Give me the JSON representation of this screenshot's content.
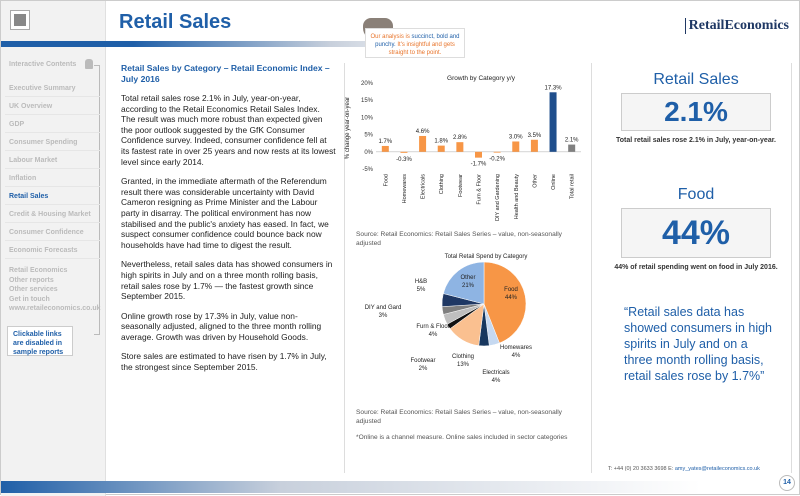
{
  "header": {
    "title": "Retail Sales",
    "brand": "RetailEconomics",
    "callout_a": "Our analysis is ",
    "callout_b": "succinct, bold and punchy.",
    "callout_c": " It's insightful and gets straight to the point."
  },
  "sidebar": {
    "contents_title": "Interactive Contents",
    "items": [
      {
        "label": "Executive Summary"
      },
      {
        "label": "UK Overview"
      },
      {
        "label": "GDP"
      },
      {
        "label": "Consumer Spending"
      },
      {
        "label": "Labour Market"
      },
      {
        "label": "Inflation"
      },
      {
        "label": "Retail Sales",
        "active": true
      },
      {
        "label": "Credit & Housing Market"
      },
      {
        "label": "Consumer Confidence"
      },
      {
        "label": "Economic Forecasts"
      }
    ],
    "links": [
      "Retail Economics",
      "Other reports",
      "Other services",
      "Get in touch",
      "www.retaileconomics.co.uk"
    ],
    "note": "Clickable links are disabled in sample reports"
  },
  "article": {
    "heading": "Retail Sales by Category – Retail Economic Index – July 2016",
    "paragraphs": [
      "Total retail sales rose 2.1% in July, year-on-year, according to the Retail Economics Retail Sales Index. The result was much more robust than expected given the poor outlook suggested by the GfK Consumer Confidence survey. Indeed, consumer confidence fell at its fastest rate in over 25 years and now rests at its lowest level since early 2014.",
      "Granted, in the immediate aftermath of the Referendum result there was considerable uncertainty with David Cameron resigning as Prime Minister and the Labour party in disarray. The political environment has now stabilised and the public's anxiety has eased. In fact, we suspect consumer confidence could bounce back now households have had time to digest the result.",
      "Nevertheless, retail sales data has showed consumers in high spirits in July and on a three month rolling basis, retail sales rose by 1.7% — the fastest growth since September 2015.",
      "Online growth rose by 17.3% in July, value non-seasonally adjusted, aligned to the three month rolling average. Growth was driven by Household Goods.",
      "Store sales are estimated to have risen by 1.7% in July, the strongest since September 2015."
    ]
  },
  "chart_data": [
    {
      "type": "bar",
      "title": "Growth by Category y/y",
      "ylabel": "% change year-on-year",
      "ylim": [
        -5,
        20
      ],
      "yticks": [
        "-5%",
        "0%",
        "5%",
        "10%",
        "15%",
        "20%"
      ],
      "categories": [
        "Food",
        "Homewares",
        "Electricals",
        "Clothing",
        "Footwear",
        "Furn & Floor",
        "DIY and Gardening",
        "Health and Beauty",
        "Other",
        "Online",
        "Total retail"
      ],
      "values": [
        1.7,
        -0.3,
        4.6,
        1.8,
        2.8,
        -1.7,
        -0.2,
        3.0,
        3.5,
        17.3,
        2.1
      ],
      "labels": [
        "1.7%",
        "-0.3%",
        "4.6%",
        "1.8%",
        "2.8%",
        "-1.7%",
        "-0.2%",
        "3.0%",
        "3.5%",
        "17.3%",
        "2.1%"
      ],
      "colors": [
        "#f79646",
        "#f79646",
        "#f79646",
        "#f79646",
        "#f79646",
        "#f79646",
        "#f79646",
        "#f79646",
        "#f79646",
        "#1f4e8c",
        "#808080"
      ]
    },
    {
      "type": "pie",
      "title": "Total Retail Spend by Category",
      "slices": [
        {
          "name": "Food",
          "value": 44,
          "label": "44%",
          "color": "#f79646"
        },
        {
          "name": "Homewares",
          "value": 4,
          "label": "4%",
          "color": "#c6d9f1"
        },
        {
          "name": "Electricals",
          "value": 4,
          "label": "4%",
          "color": "#17375e"
        },
        {
          "name": "Clothing",
          "value": 13,
          "label": "13%",
          "color": "#fac090"
        },
        {
          "name": "Footwear",
          "value": 2,
          "label": "2%",
          "color": "#111111"
        },
        {
          "name": "Furn & Floor",
          "value": 4,
          "label": "4%",
          "color": "#bfbfbf"
        },
        {
          "name": "DIY and Gard",
          "value": 3,
          "label": "3%",
          "color": "#7f7f7f"
        },
        {
          "name": "H&B",
          "value": 5,
          "label": "5%",
          "color": "#1f3864"
        },
        {
          "name": "Other",
          "value": 21,
          "label": "21%",
          "color": "#8eb4e3"
        }
      ]
    }
  ],
  "sources": {
    "bar": "Source: Retail Economics: Retail Sales Series – value, non-seasonally adjusted",
    "pie": "Source: Retail Economics: Retail Sales Series – value, non-seasonally adjusted",
    "note": "*Online is a channel measure. Online sales included in sector categories"
  },
  "kpis": [
    {
      "title": "Retail Sales",
      "value": "2.1%",
      "sub": "Total retail sales rose 2.1% in July, year-on-year."
    },
    {
      "title": "Food",
      "value": "44%",
      "sub": "44% of retail spending went on food in July 2016."
    }
  ],
  "quote": "“Retail sales data has showed consumers in high spirits in July and on a three month rolling basis, retail sales rose by 1.7%”",
  "footer": {
    "phone": "T: +44 (0) 20 3633 3698  E: ",
    "email": "amy_yates@retaileconomics.co.uk",
    "page": "14"
  }
}
